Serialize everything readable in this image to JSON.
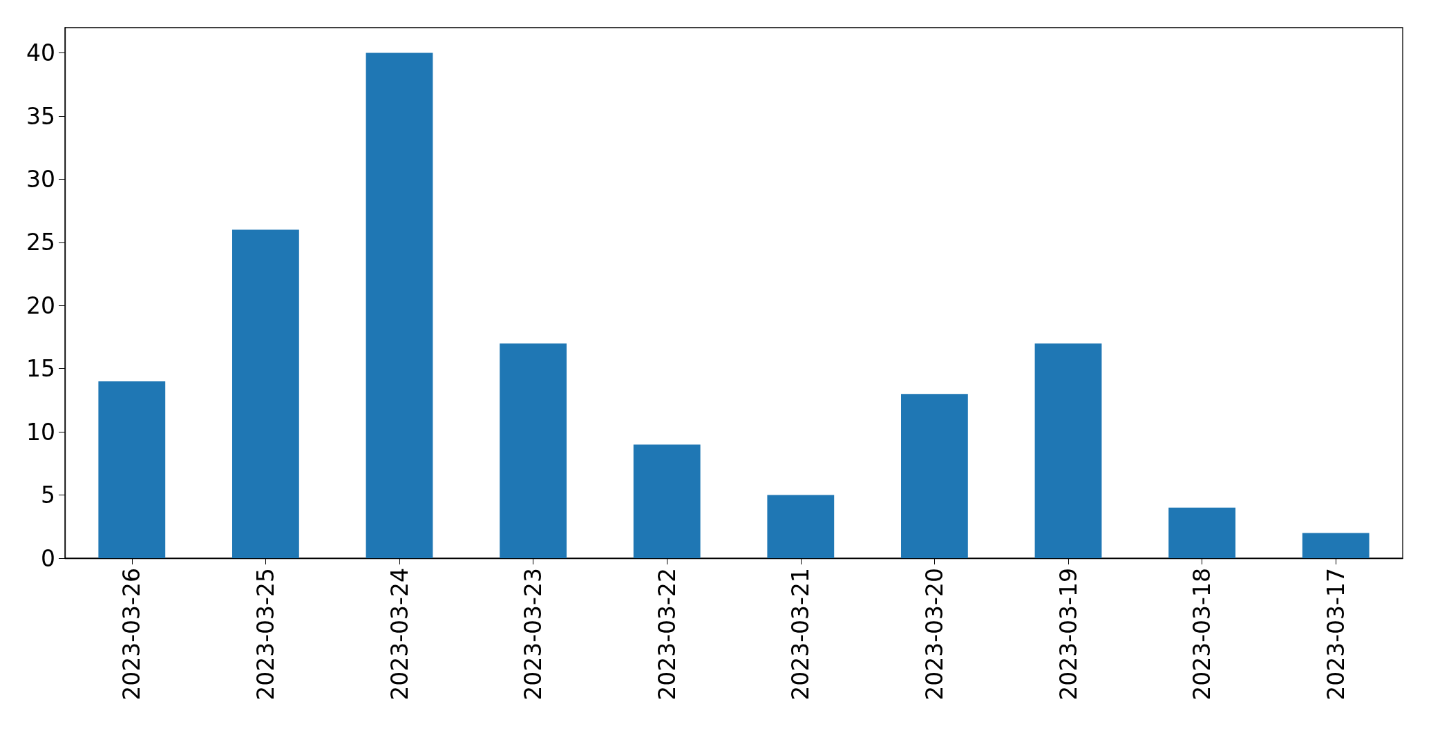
{
  "chart_data": {
    "type": "bar",
    "categories": [
      "2023-03-26",
      "2023-03-25",
      "2023-03-24",
      "2023-03-23",
      "2023-03-22",
      "2023-03-21",
      "2023-03-20",
      "2023-03-19",
      "2023-03-18",
      "2023-03-17"
    ],
    "values": [
      14,
      26,
      40,
      17,
      9,
      5,
      13,
      17,
      4,
      2
    ],
    "color": "#1f77b4",
    "ylim": [
      0,
      42
    ],
    "yticks": [
      0,
      5,
      10,
      15,
      20,
      25,
      30,
      35,
      40
    ],
    "grid": false
  }
}
